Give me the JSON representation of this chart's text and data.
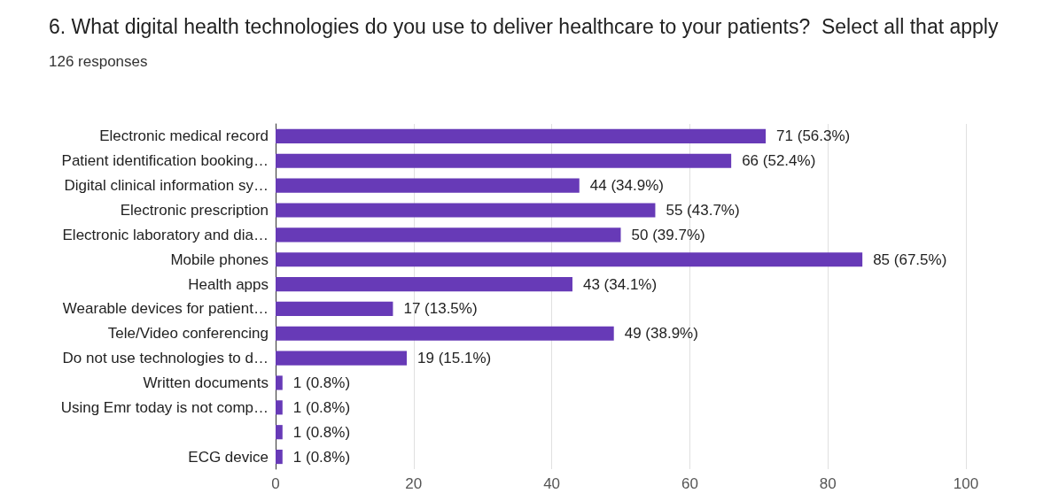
{
  "chart_data": {
    "type": "bar",
    "orientation": "horizontal",
    "title": "6. What digital health technologies do you use to deliver healthcare to your patients?  Select all that apply",
    "subtitle": "126 responses",
    "categories": [
      "Electronic medical record",
      "Patient identification booking…",
      "Digital clinical information sy…",
      "Electronic prescription",
      "Electronic laboratory and dia…",
      "Mobile phones",
      "Health apps",
      "Wearable devices for patient…",
      "Tele/Video conferencing",
      "Do not use technologies to d…",
      "Written documents",
      "Using Emr today is not comp…",
      null,
      "ECG device"
    ],
    "values": [
      71,
      66,
      44,
      55,
      50,
      85,
      43,
      17,
      49,
      19,
      1,
      1,
      1,
      1
    ],
    "value_labels": [
      "71 (56.3%)",
      "66 (52.4%)",
      "44 (34.9%)",
      "55 (43.7%)",
      "50 (39.7%)",
      "85 (67.5%)",
      "43 (34.1%)",
      "17 (13.5%)",
      "49 (38.9%)",
      "19 (15.1%)",
      "1 (0.8%)",
      "1 (0.8%)",
      "1 (0.8%)",
      "1 (0.8%)"
    ],
    "color": "#673ab7",
    "xlim": [
      0,
      100
    ],
    "xticks": [
      0,
      20,
      40,
      60,
      80,
      100
    ],
    "grid": "x"
  }
}
